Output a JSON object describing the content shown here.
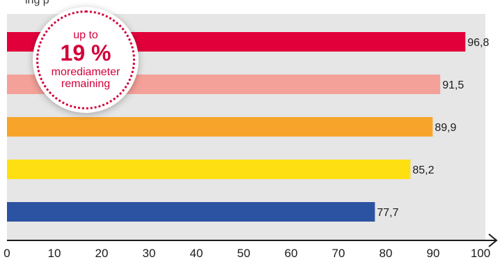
{
  "header": {
    "top_cut_text": "ing    p"
  },
  "badge": {
    "line1": "up to",
    "big": "19 %",
    "line3": "morediameter",
    "line4": "remaining"
  },
  "chart_data": {
    "type": "bar",
    "orientation": "horizontal",
    "title": "",
    "xlabel": "",
    "ylabel": "",
    "xlim": [
      0,
      100
    ],
    "xticks": [
      0,
      10,
      20,
      30,
      40,
      50,
      60,
      70,
      80,
      90,
      100
    ],
    "categories": [
      "",
      "",
      "",
      "",
      ""
    ],
    "values": [
      96.8,
      91.5,
      89.9,
      85.2,
      77.7
    ],
    "value_labels": [
      "96,8",
      "91,5",
      "89,9",
      "85,2",
      "77,7"
    ],
    "colors": [
      "#e2003b",
      "#f4a199",
      "#f6a52a",
      "#fddf12",
      "#2c53a1"
    ],
    "plot_background": "#e6e6e6",
    "grid": false,
    "legend": "none"
  }
}
